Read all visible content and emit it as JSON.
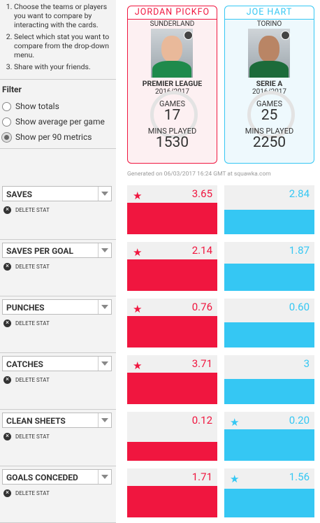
{
  "instructions": [
    "Choose the teams or players you want to compare by interacting with the cards.",
    "Select which stat you want to compare from the drop-down menu.",
    "Share with your friends."
  ],
  "filter": {
    "title": "Filter",
    "options": [
      "Show totals",
      "Show average per game",
      "Show per 90 metrics"
    ],
    "selected": 2
  },
  "players": [
    {
      "name": "JORDAN PICKFO",
      "team": "SUNDERLAND",
      "league": "PREMIER LEAGUE",
      "season": "2016/2017",
      "games_label": "GAMES",
      "games": 17,
      "mins_label": "MINS PLAYED",
      "mins": 1530,
      "color": "#f0163f",
      "bg": "#fdf0f2"
    },
    {
      "name": "JOE HART",
      "team": "TORINO",
      "league": "SERIE A",
      "season": "2016/2017",
      "games_label": "GAMES",
      "games": 25,
      "mins_label": "MINS PLAYED",
      "mins": 2250,
      "color": "#35c7f3",
      "bg": "#eef9fd"
    }
  ],
  "generated": "Generated on 06/03/2017 16:24 GMT at squawka.com",
  "delete_label": "DELETE STAT",
  "stats": [
    {
      "name": "SAVES",
      "values": [
        3.65,
        2.84
      ],
      "winner": 0
    },
    {
      "name": "SAVES PER GOAL",
      "values": [
        2.14,
        1.87
      ],
      "winner": 0
    },
    {
      "name": "PUNCHES",
      "values": [
        0.76,
        0.6
      ],
      "value_labels": [
        "0.76",
        "0.60"
      ],
      "winner": 0
    },
    {
      "name": "CATCHES",
      "values": [
        3.71,
        3
      ],
      "winner": 0
    },
    {
      "name": "CLEAN SHEETS",
      "values": [
        0.12,
        0.2
      ],
      "value_labels": [
        "0.12",
        "0.20"
      ],
      "winner": 1
    },
    {
      "name": "GOALS CONCEDED",
      "values": [
        1.71,
        1.56
      ],
      "winner": 1
    }
  ]
}
